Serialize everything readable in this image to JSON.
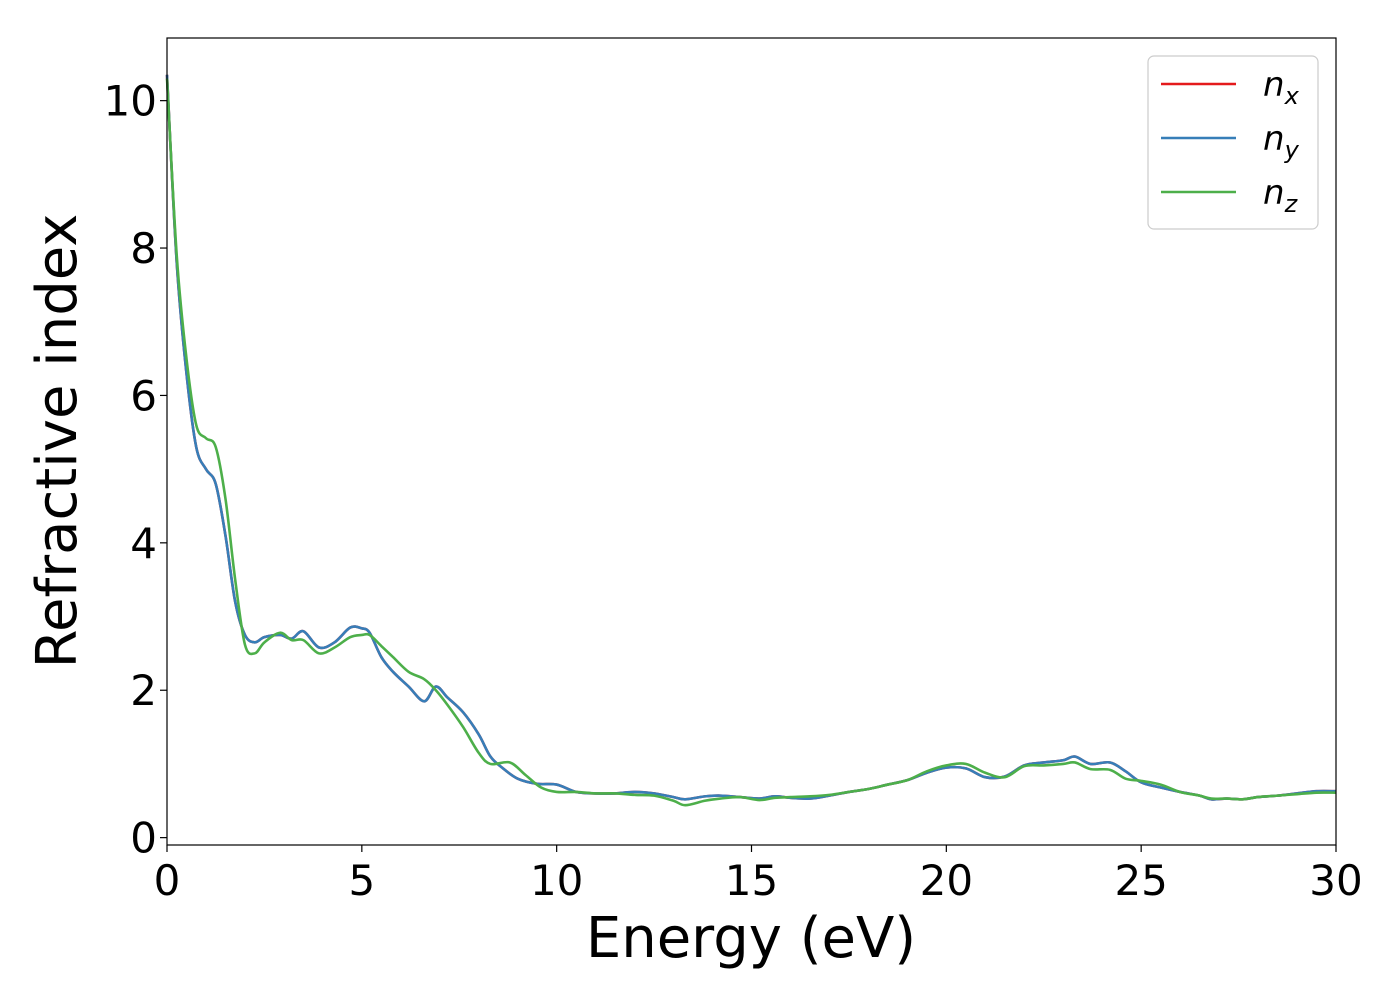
{
  "chart_data": {
    "type": "line",
    "title": "",
    "xlabel": "Energy (eV)",
    "ylabel": "Refractive index",
    "xlim": [
      0,
      30
    ],
    "ylim": [
      -0.1,
      10.85
    ],
    "xticks": [
      0,
      5,
      10,
      15,
      20,
      25,
      30
    ],
    "yticks": [
      0,
      2,
      4,
      6,
      8,
      10
    ],
    "grid": false,
    "legend_position": "top-right",
    "series": [
      {
        "name_base": "n",
        "name_sub": "x",
        "color": "#e41a1c",
        "x": [
          0,
          0.25,
          0.5,
          0.75,
          1.0,
          1.25,
          1.5,
          1.75,
          2.0,
          2.25,
          2.5,
          2.9,
          3.2,
          3.5,
          3.9,
          4.3,
          4.7,
          5.0,
          5.2,
          5.5,
          5.8,
          6.2,
          6.6,
          6.9,
          7.2,
          7.6,
          8.0,
          8.3,
          8.6,
          9.0,
          9.5,
          10.0,
          10.5,
          11.0,
          11.5,
          12.0,
          12.5,
          13.0,
          13.3,
          13.8,
          14.2,
          14.7,
          15.2,
          15.6,
          16.0,
          16.5,
          17.0,
          17.5,
          18.0,
          18.5,
          19.0,
          19.5,
          20.0,
          20.5,
          21.0,
          21.5,
          22.0,
          22.5,
          23.0,
          23.3,
          23.7,
          24.2,
          24.6,
          25.0,
          25.5,
          26.0,
          26.5,
          26.8,
          27.2,
          27.6,
          28.0,
          28.5,
          29.0,
          29.5,
          30.0
        ],
        "values": [
          10.35,
          7.8,
          6.3,
          5.3,
          5.0,
          4.8,
          4.1,
          3.2,
          2.75,
          2.65,
          2.72,
          2.75,
          2.7,
          2.8,
          2.58,
          2.65,
          2.85,
          2.84,
          2.78,
          2.45,
          2.25,
          2.05,
          1.85,
          2.05,
          1.9,
          1.7,
          1.4,
          1.1,
          0.95,
          0.8,
          0.73,
          0.72,
          0.62,
          0.6,
          0.6,
          0.62,
          0.6,
          0.55,
          0.52,
          0.56,
          0.57,
          0.55,
          0.53,
          0.56,
          0.54,
          0.53,
          0.57,
          0.62,
          0.66,
          0.72,
          0.78,
          0.88,
          0.95,
          0.94,
          0.82,
          0.83,
          0.98,
          1.02,
          1.05,
          1.1,
          1.0,
          1.02,
          0.9,
          0.75,
          0.68,
          0.62,
          0.57,
          0.52,
          0.53,
          0.52,
          0.55,
          0.57,
          0.6,
          0.63,
          0.63
        ]
      },
      {
        "name_base": "n",
        "name_sub": "y",
        "color": "#377eb8",
        "x": [
          0,
          0.25,
          0.5,
          0.75,
          1.0,
          1.25,
          1.5,
          1.75,
          2.0,
          2.25,
          2.5,
          2.9,
          3.2,
          3.5,
          3.9,
          4.3,
          4.7,
          5.0,
          5.2,
          5.5,
          5.8,
          6.2,
          6.6,
          6.9,
          7.2,
          7.6,
          8.0,
          8.3,
          8.6,
          9.0,
          9.5,
          10.0,
          10.5,
          11.0,
          11.5,
          12.0,
          12.5,
          13.0,
          13.3,
          13.8,
          14.2,
          14.7,
          15.2,
          15.6,
          16.0,
          16.5,
          17.0,
          17.5,
          18.0,
          18.5,
          19.0,
          19.5,
          20.0,
          20.5,
          21.0,
          21.5,
          22.0,
          22.5,
          23.0,
          23.3,
          23.7,
          24.2,
          24.6,
          25.0,
          25.5,
          26.0,
          26.5,
          26.8,
          27.2,
          27.6,
          28.0,
          28.5,
          29.0,
          29.5,
          30.0
        ],
        "values": [
          10.35,
          7.8,
          6.3,
          5.3,
          5.0,
          4.8,
          4.1,
          3.2,
          2.75,
          2.65,
          2.72,
          2.75,
          2.7,
          2.8,
          2.58,
          2.65,
          2.85,
          2.84,
          2.78,
          2.45,
          2.25,
          2.05,
          1.85,
          2.05,
          1.9,
          1.7,
          1.4,
          1.1,
          0.95,
          0.8,
          0.73,
          0.72,
          0.62,
          0.6,
          0.6,
          0.62,
          0.6,
          0.55,
          0.52,
          0.56,
          0.57,
          0.55,
          0.53,
          0.56,
          0.54,
          0.53,
          0.57,
          0.62,
          0.66,
          0.72,
          0.78,
          0.88,
          0.95,
          0.94,
          0.82,
          0.83,
          0.98,
          1.02,
          1.05,
          1.1,
          1.0,
          1.02,
          0.9,
          0.75,
          0.68,
          0.62,
          0.57,
          0.52,
          0.53,
          0.52,
          0.55,
          0.57,
          0.6,
          0.63,
          0.63
        ]
      },
      {
        "name_base": "n",
        "name_sub": "z",
        "color": "#4daf4a",
        "x": [
          0,
          0.25,
          0.5,
          0.75,
          1.0,
          1.25,
          1.5,
          1.75,
          2.0,
          2.25,
          2.5,
          2.9,
          3.2,
          3.5,
          3.9,
          4.3,
          4.7,
          5.0,
          5.2,
          5.5,
          5.8,
          6.2,
          6.6,
          6.9,
          7.2,
          7.6,
          8.0,
          8.3,
          8.8,
          9.2,
          9.6,
          10.0,
          10.5,
          11.0,
          11.5,
          12.0,
          12.5,
          13.0,
          13.3,
          13.8,
          14.2,
          14.7,
          15.2,
          15.6,
          16.0,
          16.5,
          17.0,
          17.5,
          18.0,
          18.5,
          19.0,
          19.5,
          20.0,
          20.5,
          21.0,
          21.5,
          22.0,
          22.5,
          23.0,
          23.3,
          23.7,
          24.2,
          24.6,
          25.0,
          25.5,
          26.0,
          26.5,
          26.8,
          27.2,
          27.6,
          28.0,
          28.5,
          29.0,
          29.5,
          30.0
        ],
        "values": [
          10.3,
          7.9,
          6.5,
          5.6,
          5.42,
          5.3,
          4.6,
          3.5,
          2.62,
          2.5,
          2.65,
          2.78,
          2.68,
          2.68,
          2.5,
          2.58,
          2.72,
          2.75,
          2.75,
          2.6,
          2.45,
          2.25,
          2.15,
          2.0,
          1.8,
          1.5,
          1.15,
          1.0,
          1.02,
          0.85,
          0.68,
          0.62,
          0.62,
          0.6,
          0.6,
          0.58,
          0.57,
          0.5,
          0.44,
          0.5,
          0.53,
          0.55,
          0.51,
          0.54,
          0.55,
          0.56,
          0.58,
          0.62,
          0.66,
          0.72,
          0.78,
          0.9,
          0.98,
          1.0,
          0.88,
          0.82,
          0.97,
          0.98,
          1.0,
          1.02,
          0.93,
          0.92,
          0.8,
          0.77,
          0.72,
          0.62,
          0.57,
          0.53,
          0.53,
          0.52,
          0.55,
          0.57,
          0.59,
          0.61,
          0.61
        ]
      }
    ]
  }
}
